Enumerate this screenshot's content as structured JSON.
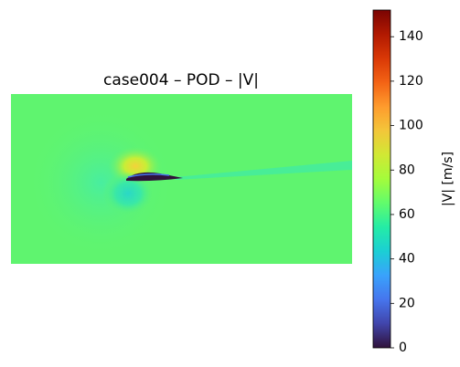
{
  "chart_data": {
    "type": "image",
    "title": "case004 – POD – |V|",
    "colorbar_label": "|V| [m/s]",
    "clim": [
      0,
      152
    ],
    "cticks": [
      0,
      20,
      40,
      60,
      80,
      100,
      120,
      140
    ],
    "colormap": [
      "#30123b",
      "#4145ab",
      "#4675ed",
      "#39a2fc",
      "#1bcfd4",
      "#24eca6",
      "#61fc6c",
      "#a4fc3b",
      "#d1e834",
      "#f3c63a",
      "#fe9b2d",
      "#f36315",
      "#d93806",
      "#b11901",
      "#7a0403"
    ]
  }
}
